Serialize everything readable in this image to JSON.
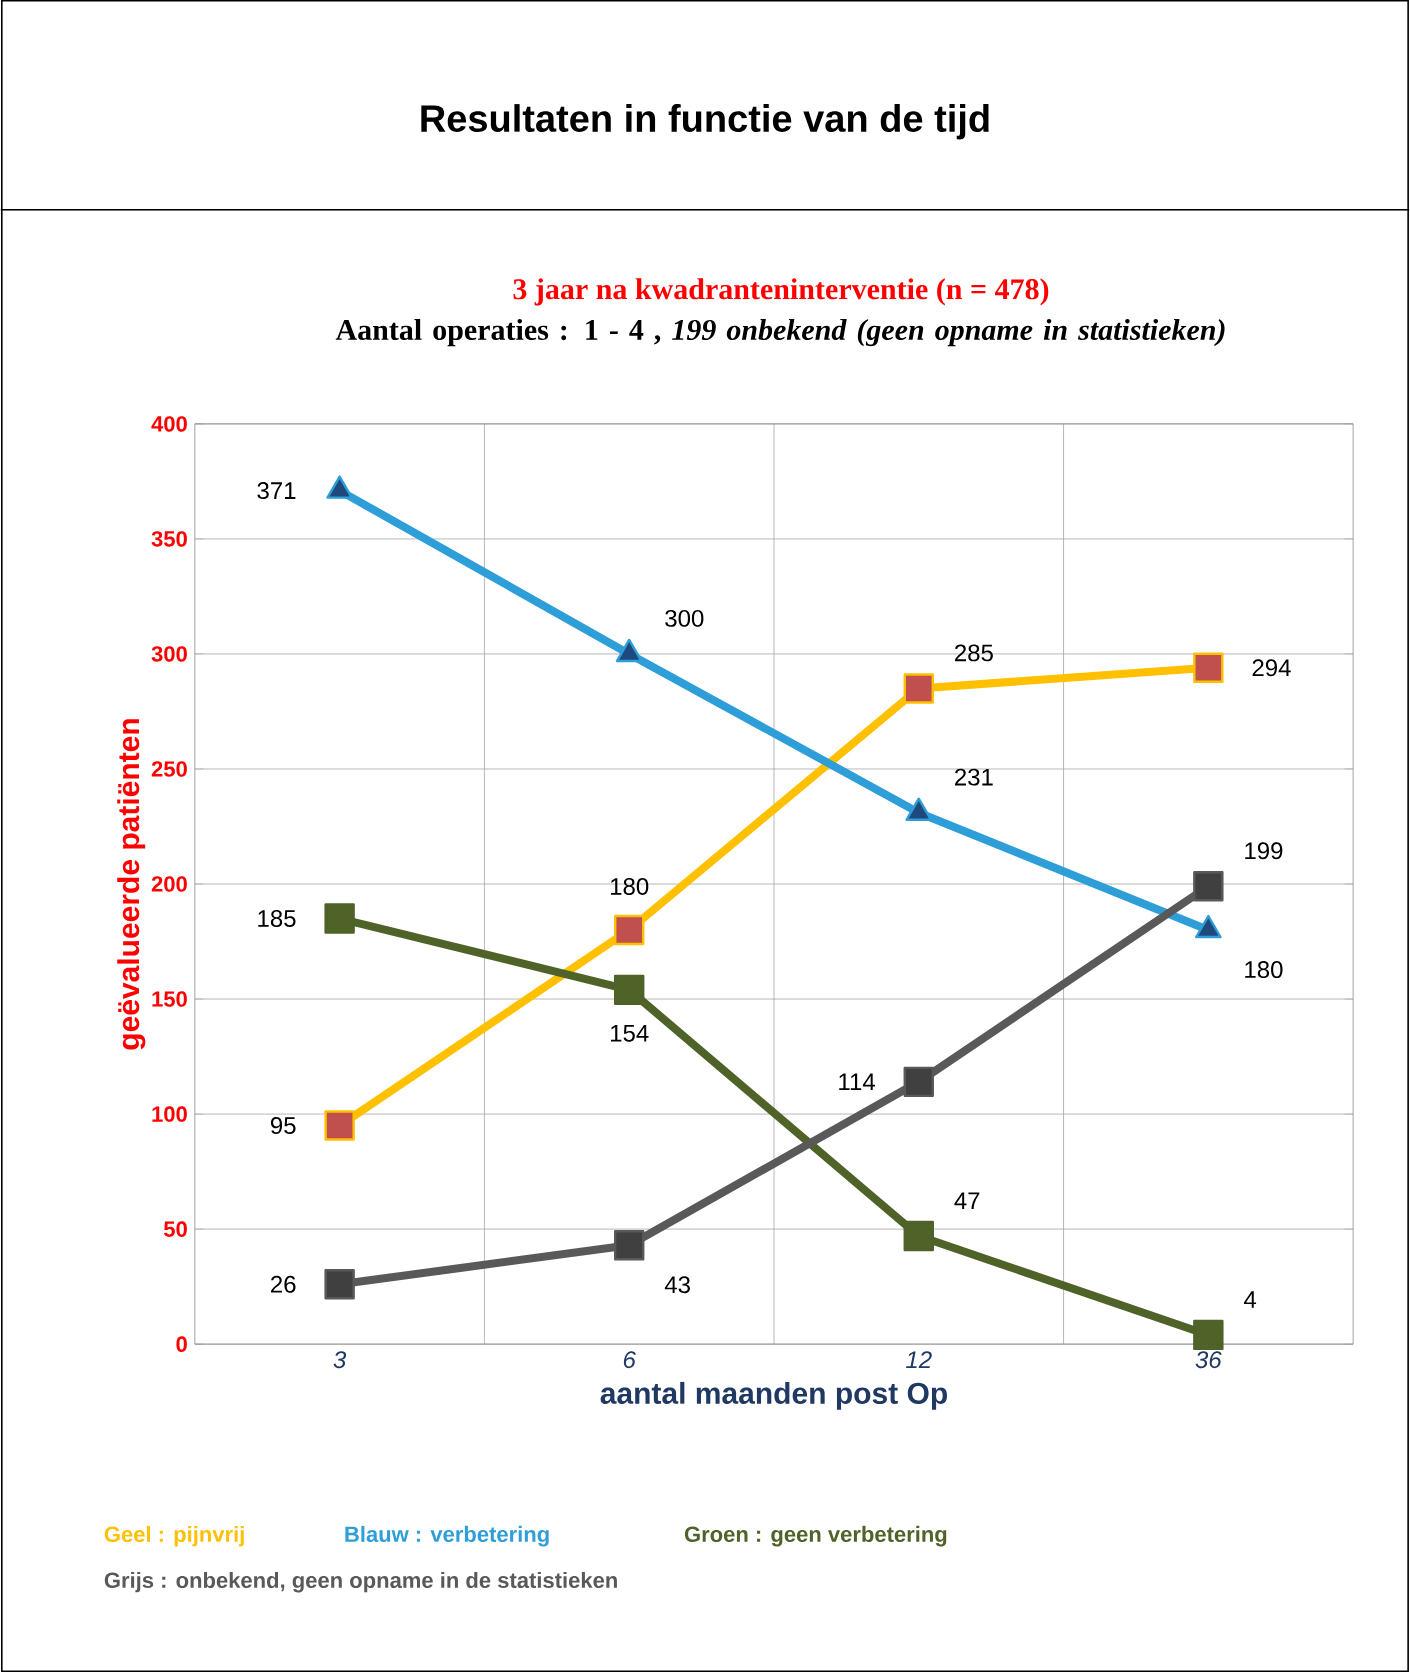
{
  "chart_data": {
    "type": "line",
    "title": "Resultaten in functie van de tijd",
    "subtitle": "3 jaar na kwadranteninterventie (n = 478)",
    "annotations": [
      "Aantal operaties : 1 - 4 , *199 onbekend (geen opname in statistieken)*"
    ],
    "xlabel": "aantal maanden post Op",
    "ylabel": "geëvalueerde patiënten",
    "categories": [
      "3",
      "6",
      "12",
      "36"
    ],
    "ylim": [
      0,
      400
    ],
    "yticks": [
      0,
      50,
      100,
      150,
      200,
      250,
      300,
      350,
      400
    ],
    "grid": true,
    "legend": "bottom",
    "data_labels": true,
    "series": [
      {
        "name": "Geel : pijnvrij",
        "color": "#ffc000",
        "marker": "square",
        "values": [
          95,
          180,
          285,
          294
        ]
      },
      {
        "name": "Blauw : verbetering",
        "color": "#2e9ed8",
        "marker": "triangle",
        "values": [
          371,
          300,
          231,
          180
        ]
      },
      {
        "name": "Groen : geen verbetering",
        "color": "#4f6228",
        "marker": "square",
        "values": [
          185,
          154,
          47,
          4
        ]
      },
      {
        "name": "Grijs : onbekend, geen opname in de statistieken",
        "color": "#595959",
        "marker": "square",
        "values": [
          26,
          43,
          114,
          199
        ]
      }
    ]
  }
}
